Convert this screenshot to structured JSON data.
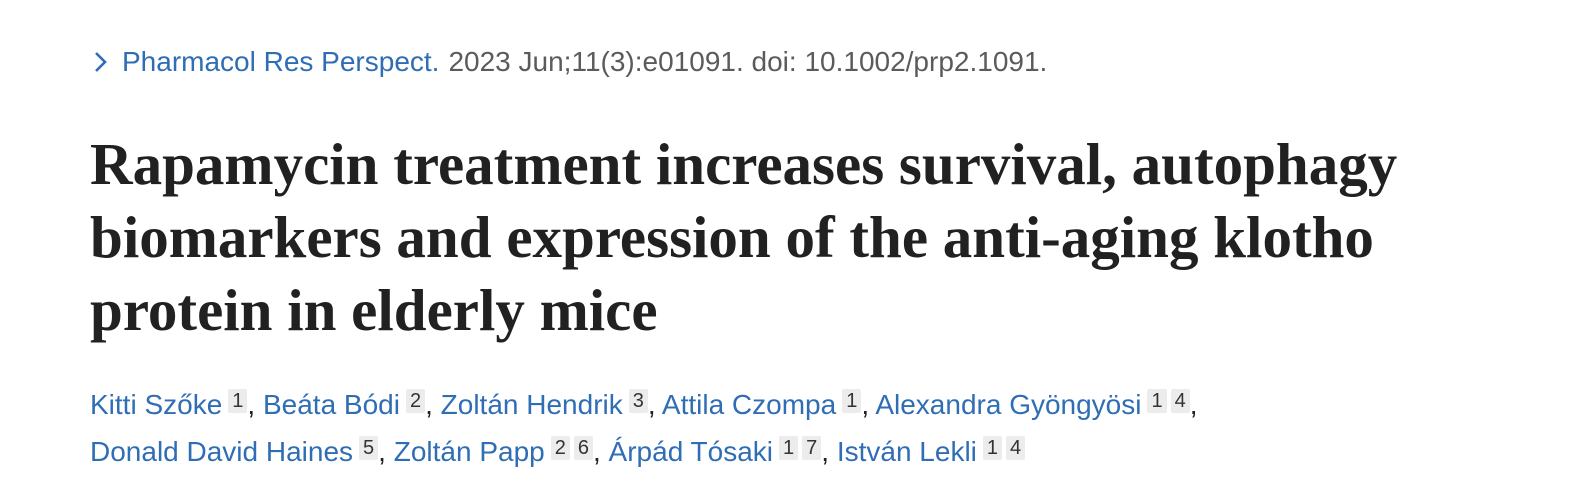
{
  "citation": {
    "journal": "Pharmacol Res Perspect.",
    "details": "2023 Jun;11(3):e01091. doi: 10.1002/prp2.1091."
  },
  "title_lines": [
    "Rapamycin treatment increases survival, autophagy",
    "biomarkers and expression of the anti-aging klotho",
    "protein in elderly mice"
  ],
  "authors_separator": ",",
  "authors": [
    {
      "name": "Kitti Szőke",
      "affiliations": [
        1
      ]
    },
    {
      "name": "Beáta Bódi",
      "affiliations": [
        2
      ]
    },
    {
      "name": "Zoltán Hendrik",
      "affiliations": [
        3
      ]
    },
    {
      "name": "Attila Czompa",
      "affiliations": [
        1
      ]
    },
    {
      "name": "Alexandra Gyöngyösi",
      "affiliations": [
        1,
        4
      ]
    },
    {
      "name": "Donald David Haines",
      "affiliations": [
        5
      ]
    },
    {
      "name": "Zoltán Papp",
      "affiliations": [
        2,
        6
      ]
    },
    {
      "name": "Árpád Tósaki",
      "affiliations": [
        1,
        7
      ]
    },
    {
      "name": "István Lekli",
      "affiliations": [
        1,
        4
      ]
    }
  ]
}
